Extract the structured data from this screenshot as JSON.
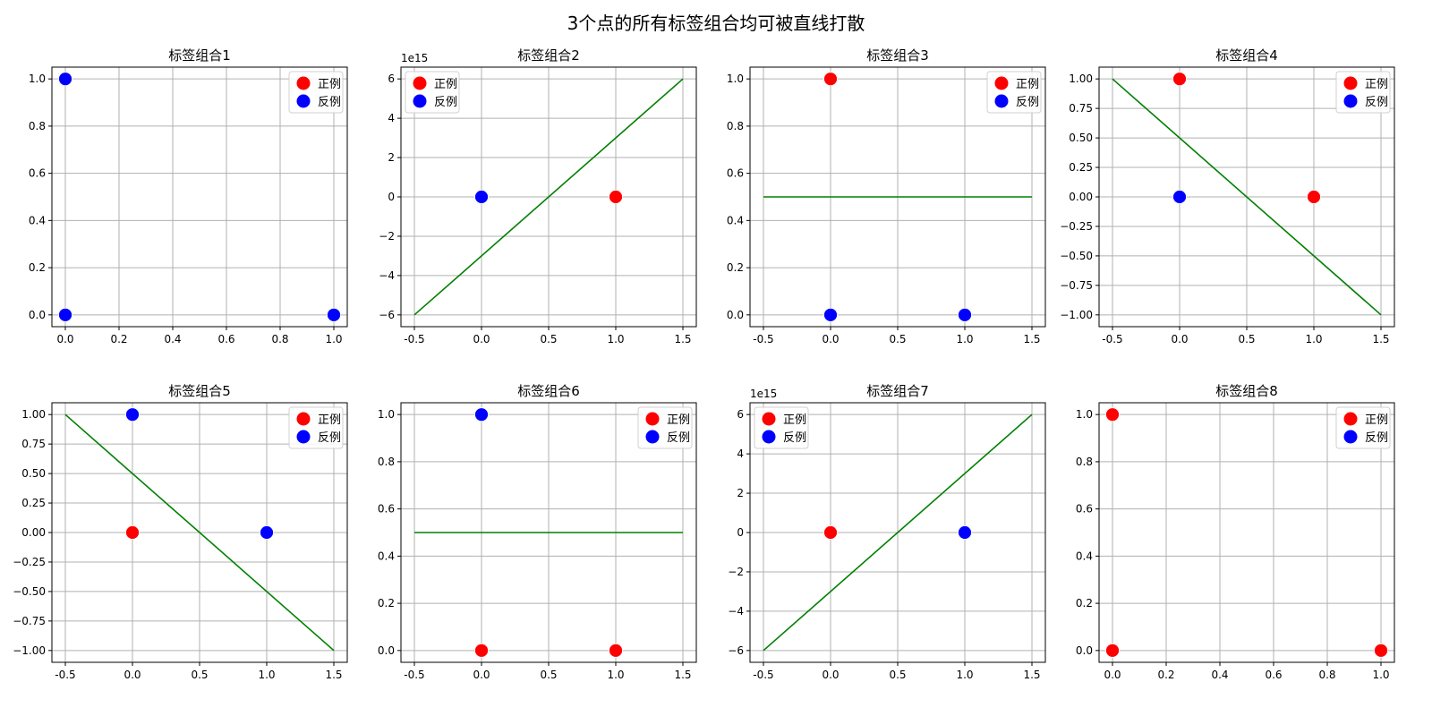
{
  "figure": {
    "title": "3个点的所有标签组合均可被直线打散"
  },
  "colors": {
    "positive": "#ff0000",
    "negative": "#0000ff",
    "line": "#008000",
    "grid": "#b0b0b0"
  },
  "chart_data": [
    {
      "type": "scatter",
      "title": "标签组合1",
      "xlim": [
        -0.05,
        1.05
      ],
      "ylim": [
        -0.05,
        1.05
      ],
      "xticks": [
        0.0,
        0.2,
        0.4,
        0.6,
        0.8,
        1.0
      ],
      "xtick_labels": [
        "0.0",
        "0.2",
        "0.4",
        "0.6",
        "0.8",
        "1.0"
      ],
      "yticks": [
        0.0,
        0.2,
        0.4,
        0.6,
        0.8,
        1.0
      ],
      "ytick_labels": [
        "0.0",
        "0.2",
        "0.4",
        "0.6",
        "0.8",
        "1.0"
      ],
      "y_offset_label": "",
      "grid": true,
      "legend": {
        "placement": "top-right",
        "entries": [
          "正例",
          "反例"
        ]
      },
      "points": [
        {
          "x": 0,
          "y": 0,
          "label": "negative"
        },
        {
          "x": 1,
          "y": 0,
          "label": "negative"
        },
        {
          "x": 0,
          "y": 1,
          "label": "negative"
        }
      ],
      "line": null
    },
    {
      "type": "scatter",
      "title": "标签组合2",
      "xlim": [
        -0.6,
        1.6
      ],
      "ylim": [
        -6600000000000000.0,
        6600000000000000.0
      ],
      "xticks": [
        -0.5,
        0.0,
        0.5,
        1.0,
        1.5
      ],
      "xtick_labels": [
        "-0.5",
        "0.0",
        "0.5",
        "1.0",
        "1.5"
      ],
      "yticks": [
        -6000000000000000.0,
        -4000000000000000.0,
        -2000000000000000.0,
        0,
        2000000000000000.0,
        4000000000000000.0,
        6000000000000000.0
      ],
      "ytick_labels": [
        "−6",
        "−4",
        "−2",
        "0",
        "2",
        "4",
        "6"
      ],
      "y_offset_label": "1e15",
      "grid": true,
      "legend": {
        "placement": "top-left",
        "entries": [
          "正例",
          "反例"
        ]
      },
      "points": [
        {
          "x": 0,
          "y": 0,
          "label": "negative"
        },
        {
          "x": 1,
          "y": 0,
          "label": "positive"
        },
        {
          "x": 0,
          "y": 1,
          "label": "negative"
        }
      ],
      "line": {
        "x": [
          -0.5,
          1.5
        ],
        "y": [
          -6000000000000000.0,
          6000000000000000.0
        ]
      }
    },
    {
      "type": "scatter",
      "title": "标签组合3",
      "xlim": [
        -0.6,
        1.6
      ],
      "ylim": [
        -0.05,
        1.05
      ],
      "xticks": [
        -0.5,
        0.0,
        0.5,
        1.0,
        1.5
      ],
      "xtick_labels": [
        "-0.5",
        "0.0",
        "0.5",
        "1.0",
        "1.5"
      ],
      "yticks": [
        0.0,
        0.2,
        0.4,
        0.6,
        0.8,
        1.0
      ],
      "ytick_labels": [
        "0.0",
        "0.2",
        "0.4",
        "0.6",
        "0.8",
        "1.0"
      ],
      "y_offset_label": "",
      "grid": true,
      "legend": {
        "placement": "top-right",
        "entries": [
          "正例",
          "反例"
        ]
      },
      "points": [
        {
          "x": 0,
          "y": 0,
          "label": "negative"
        },
        {
          "x": 1,
          "y": 0,
          "label": "negative"
        },
        {
          "x": 0,
          "y": 1,
          "label": "positive"
        }
      ],
      "line": {
        "x": [
          -0.5,
          1.5
        ],
        "y": [
          0.5,
          0.5
        ]
      }
    },
    {
      "type": "scatter",
      "title": "标签组合4",
      "xlim": [
        -0.6,
        1.6
      ],
      "ylim": [
        -1.1,
        1.1
      ],
      "xticks": [
        -0.5,
        0.0,
        0.5,
        1.0,
        1.5
      ],
      "xtick_labels": [
        "-0.5",
        "0.0",
        "0.5",
        "1.0",
        "1.5"
      ],
      "yticks": [
        -1.0,
        -0.75,
        -0.5,
        -0.25,
        0.0,
        0.25,
        0.5,
        0.75,
        1.0
      ],
      "ytick_labels": [
        "−1.00",
        "−0.75",
        "−0.50",
        "−0.25",
        "0.00",
        "0.25",
        "0.50",
        "0.75",
        "1.00"
      ],
      "y_offset_label": "",
      "grid": true,
      "legend": {
        "placement": "top-right",
        "entries": [
          "正例",
          "反例"
        ]
      },
      "points": [
        {
          "x": 0,
          "y": 0,
          "label": "negative"
        },
        {
          "x": 1,
          "y": 0,
          "label": "positive"
        },
        {
          "x": 0,
          "y": 1,
          "label": "positive"
        }
      ],
      "line": {
        "x": [
          -0.5,
          1.5
        ],
        "y": [
          1.0,
          -1.0
        ]
      }
    },
    {
      "type": "scatter",
      "title": "标签组合5",
      "xlim": [
        -0.6,
        1.6
      ],
      "ylim": [
        -1.1,
        1.1
      ],
      "xticks": [
        -0.5,
        0.0,
        0.5,
        1.0,
        1.5
      ],
      "xtick_labels": [
        "-0.5",
        "0.0",
        "0.5",
        "1.0",
        "1.5"
      ],
      "yticks": [
        -1.0,
        -0.75,
        -0.5,
        -0.25,
        0.0,
        0.25,
        0.5,
        0.75,
        1.0
      ],
      "ytick_labels": [
        "−1.00",
        "−0.75",
        "−0.50",
        "−0.25",
        "0.00",
        "0.25",
        "0.50",
        "0.75",
        "1.00"
      ],
      "y_offset_label": "",
      "grid": true,
      "legend": {
        "placement": "top-right",
        "entries": [
          "正例",
          "反例"
        ]
      },
      "points": [
        {
          "x": 0,
          "y": 0,
          "label": "positive"
        },
        {
          "x": 1,
          "y": 0,
          "label": "negative"
        },
        {
          "x": 0,
          "y": 1,
          "label": "negative"
        }
      ],
      "line": {
        "x": [
          -0.5,
          1.5
        ],
        "y": [
          1.0,
          -1.0
        ]
      }
    },
    {
      "type": "scatter",
      "title": "标签组合6",
      "xlim": [
        -0.6,
        1.6
      ],
      "ylim": [
        -0.05,
        1.05
      ],
      "xticks": [
        -0.5,
        0.0,
        0.5,
        1.0,
        1.5
      ],
      "xtick_labels": [
        "-0.5",
        "0.0",
        "0.5",
        "1.0",
        "1.5"
      ],
      "yticks": [
        0.0,
        0.2,
        0.4,
        0.6,
        0.8,
        1.0
      ],
      "ytick_labels": [
        "0.0",
        "0.2",
        "0.4",
        "0.6",
        "0.8",
        "1.0"
      ],
      "y_offset_label": "",
      "grid": true,
      "legend": {
        "placement": "top-right",
        "entries": [
          "正例",
          "反例"
        ]
      },
      "points": [
        {
          "x": 0,
          "y": 0,
          "label": "positive"
        },
        {
          "x": 1,
          "y": 0,
          "label": "positive"
        },
        {
          "x": 0,
          "y": 1,
          "label": "negative"
        }
      ],
      "line": {
        "x": [
          -0.5,
          1.5
        ],
        "y": [
          0.5,
          0.5
        ]
      }
    },
    {
      "type": "scatter",
      "title": "标签组合7",
      "xlim": [
        -0.6,
        1.6
      ],
      "ylim": [
        -6600000000000000.0,
        6600000000000000.0
      ],
      "xticks": [
        -0.5,
        0.0,
        0.5,
        1.0,
        1.5
      ],
      "xtick_labels": [
        "-0.5",
        "0.0",
        "0.5",
        "1.0",
        "1.5"
      ],
      "yticks": [
        -6000000000000000.0,
        -4000000000000000.0,
        -2000000000000000.0,
        0,
        2000000000000000.0,
        4000000000000000.0,
        6000000000000000.0
      ],
      "ytick_labels": [
        "−6",
        "−4",
        "−2",
        "0",
        "2",
        "4",
        "6"
      ],
      "y_offset_label": "1e15",
      "grid": true,
      "legend": {
        "placement": "top-left",
        "entries": [
          "正例",
          "反例"
        ]
      },
      "points": [
        {
          "x": 0,
          "y": 0,
          "label": "positive"
        },
        {
          "x": 1,
          "y": 0,
          "label": "negative"
        },
        {
          "x": 0,
          "y": 1,
          "label": "positive"
        }
      ],
      "line": {
        "x": [
          -0.5,
          1.5
        ],
        "y": [
          -6000000000000000.0,
          6000000000000000.0
        ]
      }
    },
    {
      "type": "scatter",
      "title": "标签组合8",
      "xlim": [
        -0.05,
        1.05
      ],
      "ylim": [
        -0.05,
        1.05
      ],
      "xticks": [
        0.0,
        0.2,
        0.4,
        0.6,
        0.8,
        1.0
      ],
      "xtick_labels": [
        "0.0",
        "0.2",
        "0.4",
        "0.6",
        "0.8",
        "1.0"
      ],
      "yticks": [
        0.0,
        0.2,
        0.4,
        0.6,
        0.8,
        1.0
      ],
      "ytick_labels": [
        "0.0",
        "0.2",
        "0.4",
        "0.6",
        "0.8",
        "1.0"
      ],
      "y_offset_label": "",
      "grid": true,
      "legend": {
        "placement": "top-right",
        "entries": [
          "正例",
          "反例"
        ]
      },
      "points": [
        {
          "x": 0,
          "y": 0,
          "label": "positive"
        },
        {
          "x": 1,
          "y": 0,
          "label": "positive"
        },
        {
          "x": 0,
          "y": 1,
          "label": "positive"
        }
      ],
      "line": null
    }
  ]
}
